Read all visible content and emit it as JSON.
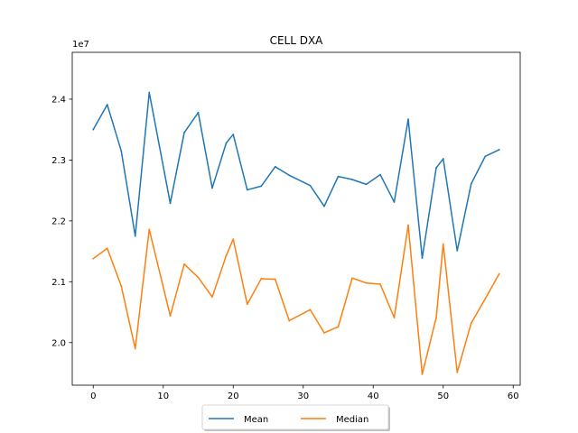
{
  "chart_data": {
    "type": "line",
    "title": "CELL DXA",
    "xlabel": "",
    "ylabel": "",
    "y_offset_label": "1e7",
    "xlim": [
      -3,
      61
    ],
    "ylim": [
      1.93,
      2.477
    ],
    "x_ticks": [
      0,
      10,
      20,
      30,
      40,
      50,
      60
    ],
    "y_ticks": [
      2.0,
      2.1,
      2.2,
      2.3,
      2.4
    ],
    "y_tick_labels": [
      "2.0",
      "2.1",
      "2.2",
      "2.3",
      "2.4"
    ],
    "grid": false,
    "legend_position": "bottom-center",
    "x": [
      0,
      2,
      4,
      6,
      8,
      11,
      13,
      15,
      17,
      19,
      20,
      22,
      24,
      26,
      28,
      31,
      33,
      35,
      37,
      39,
      41,
      43,
      45,
      47,
      49,
      50,
      52,
      54,
      56,
      58
    ],
    "series": [
      {
        "name": "Mean",
        "color": "#1f77b4",
        "values": [
          2.35,
          2.391,
          2.315,
          2.175,
          2.411,
          2.229,
          2.345,
          2.378,
          2.254,
          2.328,
          2.342,
          2.251,
          2.257,
          2.289,
          2.275,
          2.258,
          2.224,
          2.273,
          2.268,
          2.26,
          2.276,
          2.231,
          2.367,
          2.139,
          2.287,
          2.302,
          2.151,
          2.261,
          2.306,
          2.317
        ]
      },
      {
        "name": "Median",
        "color": "#ff7f0e",
        "values": [
          2.138,
          2.155,
          2.093,
          1.99,
          2.186,
          2.044,
          2.129,
          2.107,
          2.075,
          2.143,
          2.17,
          2.063,
          2.105,
          2.104,
          2.036,
          2.054,
          2.016,
          2.026,
          2.106,
          2.098,
          2.096,
          2.041,
          2.193,
          1.948,
          2.041,
          2.162,
          1.951,
          2.032,
          2.072,
          2.113
        ]
      }
    ]
  }
}
